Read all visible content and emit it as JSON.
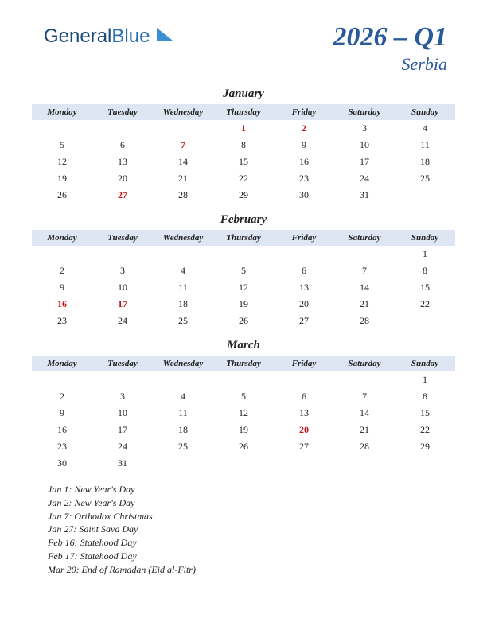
{
  "logo": {
    "part1": "General",
    "part2": "Blue"
  },
  "header": {
    "quarter": "2026 – Q1",
    "country": "Serbia"
  },
  "dayHeaders": [
    "Monday",
    "Tuesday",
    "Wednesday",
    "Thursday",
    "Friday",
    "Saturday",
    "Sunday"
  ],
  "colors": {
    "headerBg": "#dde6f2",
    "titleColor": "#2a5a9a",
    "holidayColor": "#c01818",
    "textColor": "#222222",
    "background": "#ffffff"
  },
  "months": [
    {
      "name": "January",
      "weeks": [
        [
          null,
          null,
          null,
          {
            "d": 1,
            "h": true
          },
          {
            "d": 2,
            "h": true
          },
          {
            "d": 3
          },
          {
            "d": 4
          }
        ],
        [
          {
            "d": 5
          },
          {
            "d": 6
          },
          {
            "d": 7,
            "h": true
          },
          {
            "d": 8
          },
          {
            "d": 9
          },
          {
            "d": 10
          },
          {
            "d": 11
          }
        ],
        [
          {
            "d": 12
          },
          {
            "d": 13
          },
          {
            "d": 14
          },
          {
            "d": 15
          },
          {
            "d": 16
          },
          {
            "d": 17
          },
          {
            "d": 18
          }
        ],
        [
          {
            "d": 19
          },
          {
            "d": 20
          },
          {
            "d": 21
          },
          {
            "d": 22
          },
          {
            "d": 23
          },
          {
            "d": 24
          },
          {
            "d": 25
          }
        ],
        [
          {
            "d": 26
          },
          {
            "d": 27,
            "h": true
          },
          {
            "d": 28
          },
          {
            "d": 29
          },
          {
            "d": 30
          },
          {
            "d": 31
          },
          null
        ]
      ]
    },
    {
      "name": "February",
      "weeks": [
        [
          null,
          null,
          null,
          null,
          null,
          null,
          {
            "d": 1
          }
        ],
        [
          {
            "d": 2
          },
          {
            "d": 3
          },
          {
            "d": 4
          },
          {
            "d": 5
          },
          {
            "d": 6
          },
          {
            "d": 7
          },
          {
            "d": 8
          }
        ],
        [
          {
            "d": 9
          },
          {
            "d": 10
          },
          {
            "d": 11
          },
          {
            "d": 12
          },
          {
            "d": 13
          },
          {
            "d": 14
          },
          {
            "d": 15
          }
        ],
        [
          {
            "d": 16,
            "h": true
          },
          {
            "d": 17,
            "h": true
          },
          {
            "d": 18
          },
          {
            "d": 19
          },
          {
            "d": 20
          },
          {
            "d": 21
          },
          {
            "d": 22
          }
        ],
        [
          {
            "d": 23
          },
          {
            "d": 24
          },
          {
            "d": 25
          },
          {
            "d": 26
          },
          {
            "d": 27
          },
          {
            "d": 28
          },
          null
        ]
      ]
    },
    {
      "name": "March",
      "weeks": [
        [
          null,
          null,
          null,
          null,
          null,
          null,
          {
            "d": 1
          }
        ],
        [
          {
            "d": 2
          },
          {
            "d": 3
          },
          {
            "d": 4
          },
          {
            "d": 5
          },
          {
            "d": 6
          },
          {
            "d": 7
          },
          {
            "d": 8
          }
        ],
        [
          {
            "d": 9
          },
          {
            "d": 10
          },
          {
            "d": 11
          },
          {
            "d": 12
          },
          {
            "d": 13
          },
          {
            "d": 14
          },
          {
            "d": 15
          }
        ],
        [
          {
            "d": 16
          },
          {
            "d": 17
          },
          {
            "d": 18
          },
          {
            "d": 19
          },
          {
            "d": 20,
            "h": true
          },
          {
            "d": 21
          },
          {
            "d": 22
          }
        ],
        [
          {
            "d": 23
          },
          {
            "d": 24
          },
          {
            "d": 25
          },
          {
            "d": 26
          },
          {
            "d": 27
          },
          {
            "d": 28
          },
          {
            "d": 29
          }
        ],
        [
          {
            "d": 30
          },
          {
            "d": 31
          },
          null,
          null,
          null,
          null,
          null
        ]
      ]
    }
  ],
  "holidays": [
    "Jan 1: New Year's Day",
    "Jan 2: New Year's Day",
    "Jan 7: Orthodox Christmas",
    "Jan 27: Saint Sava Day",
    "Feb 16: Statehood Day",
    "Feb 17: Statehood Day",
    "Mar 20: End of Ramadan (Eid al-Fitr)"
  ]
}
